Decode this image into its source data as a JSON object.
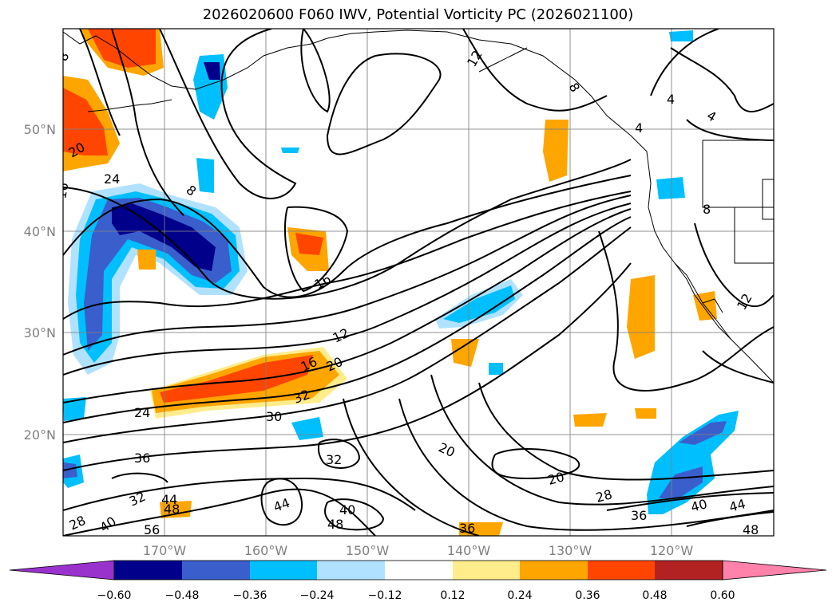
{
  "title": "2026020600 F060 IWV, Potential Vorticity PC (2026021100)",
  "latitude_labels": [
    "50°N",
    "40°N",
    "30°N",
    "20°N"
  ],
  "longitude_labels": [
    "170°W",
    "160°W",
    "150°W",
    "140°W",
    "130°W",
    "120°W"
  ],
  "contour_labels": [
    "8",
    "12",
    "8",
    "4",
    "4",
    "4",
    "20",
    "24",
    "8",
    "16",
    "8",
    "12",
    "12",
    "16",
    "20",
    "32",
    "30",
    "24",
    "36",
    "32",
    "20",
    "20",
    "28",
    "36",
    "40",
    "44",
    "48",
    "44",
    "40",
    "48",
    "36",
    "32",
    "44",
    "48",
    "40",
    "28",
    "56",
    "16"
  ],
  "colorbar": {
    "tick_labels": [
      "−0.60",
      "−0.48",
      "−0.36",
      "−0.24",
      "−0.12",
      "0.12",
      "0.24",
      "0.36",
      "0.48",
      "0.60"
    ],
    "colors": [
      "#9932cc",
      "#00008b",
      "#3a5fcd",
      "#00bfff",
      "#b0e2ff",
      "#ffffff",
      "#ffec8b",
      "#ffa500",
      "#ff4500",
      "#b22222",
      "#ff82ab"
    ]
  },
  "colors": {
    "coastline": "#000000",
    "grid": "#808080",
    "contour": "#000000"
  }
}
